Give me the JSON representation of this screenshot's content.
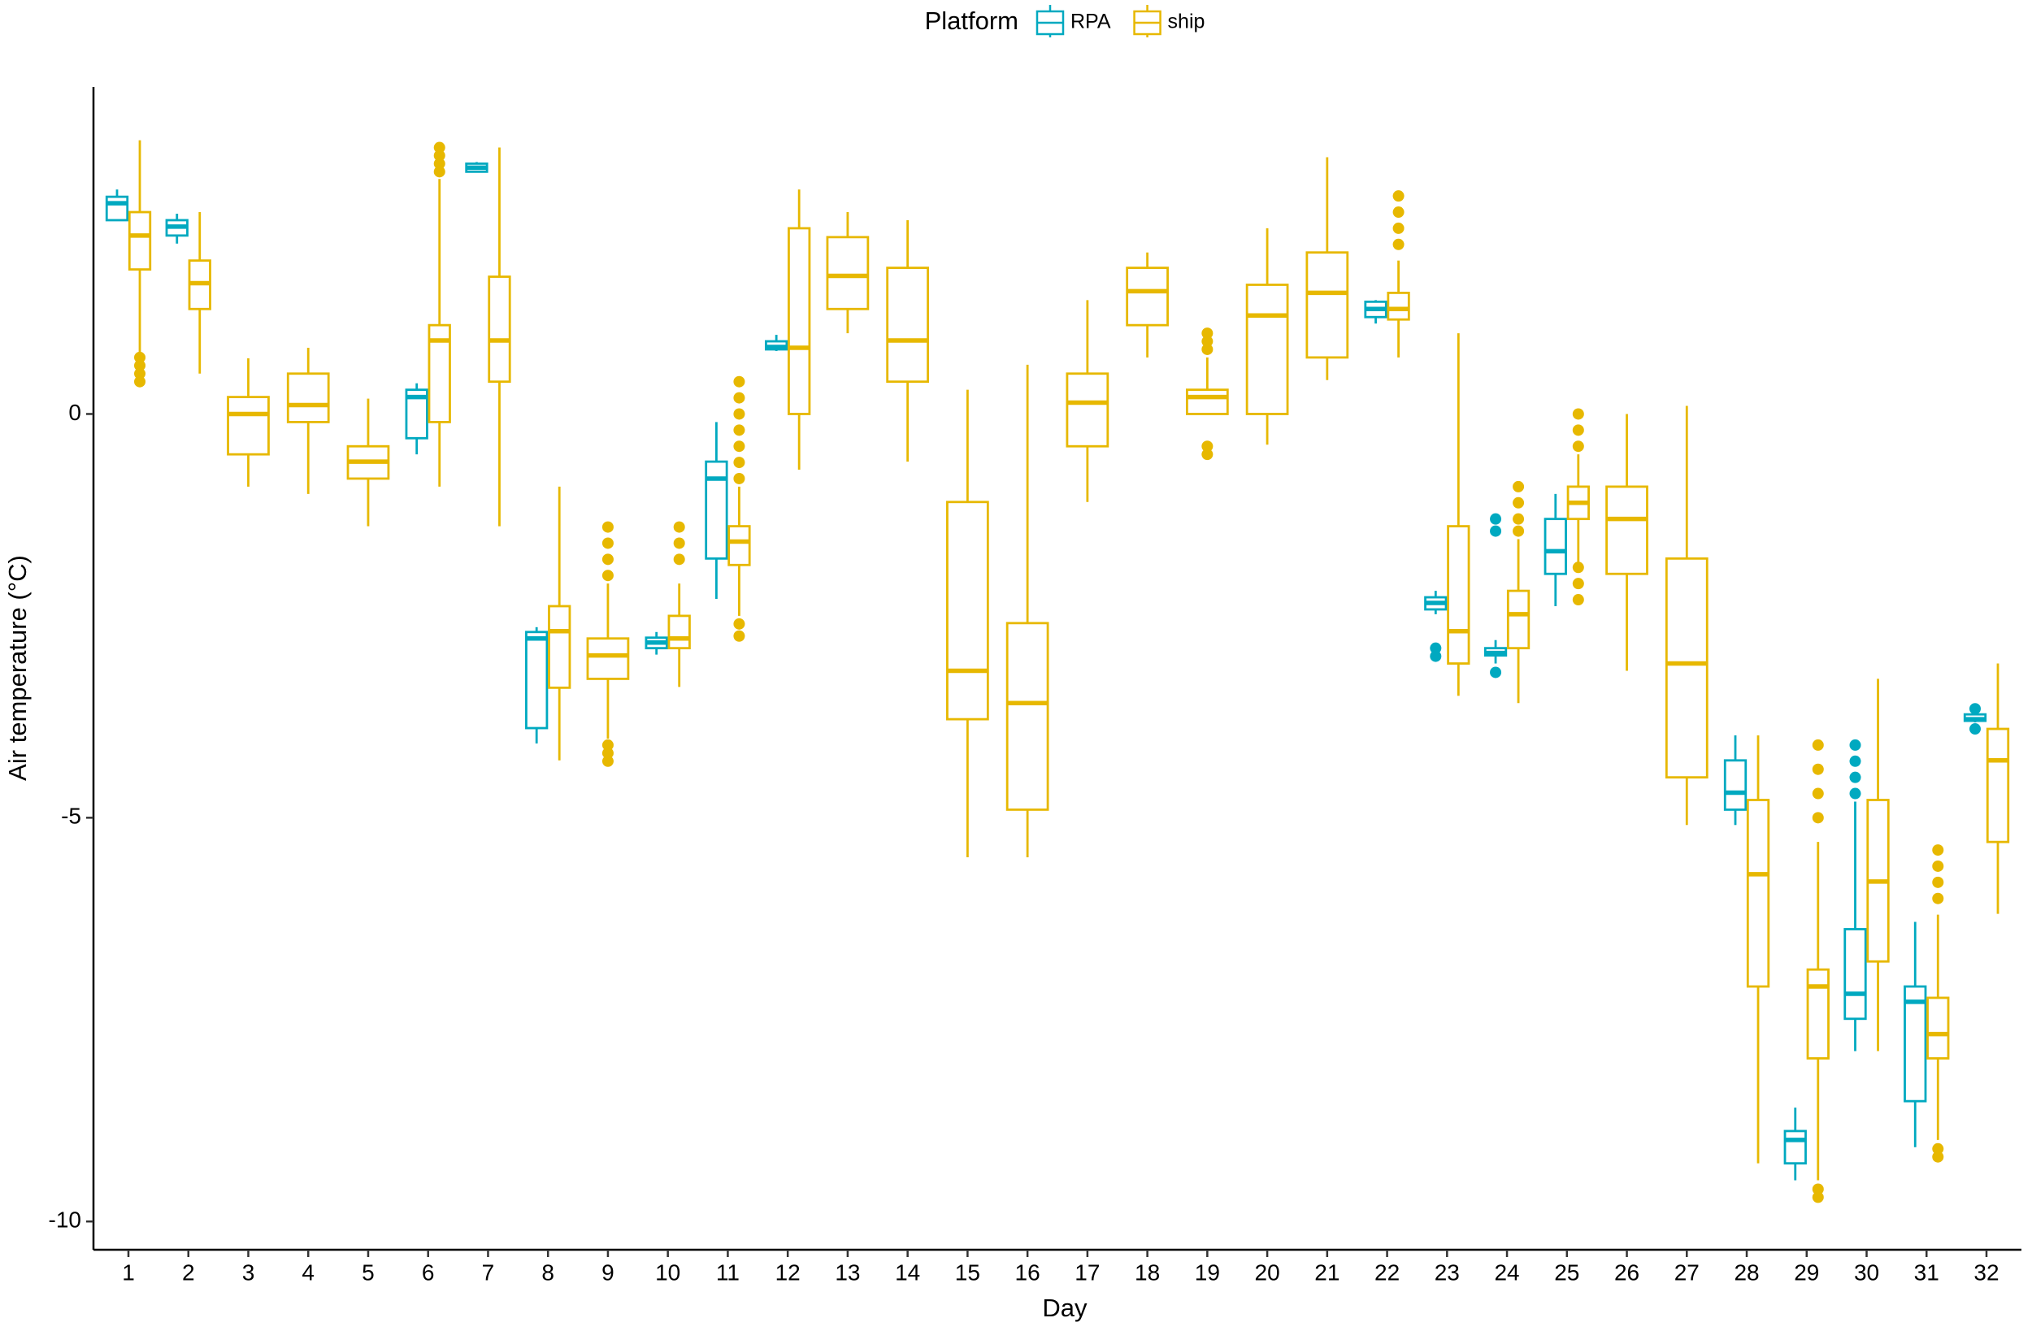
{
  "chart_data": {
    "type": "boxplot",
    "xlabel": "Day",
    "ylabel": "Air temperature (°C)",
    "legend_title": "Platform",
    "legend_position": "top",
    "categories": [
      "1",
      "2",
      "3",
      "4",
      "5",
      "6",
      "7",
      "8",
      "9",
      "10",
      "11",
      "12",
      "13",
      "14",
      "15",
      "16",
      "17",
      "18",
      "19",
      "20",
      "21",
      "22",
      "23",
      "24",
      "25",
      "26",
      "27",
      "28",
      "29",
      "30",
      "31",
      "32"
    ],
    "ylim": [
      -10.35,
      4.05
    ],
    "yticks": [
      -10,
      -5,
      0
    ],
    "series": [
      {
        "name": "RPA",
        "color": "#00a9c0",
        "boxes": [
          {
            "low": 2.4,
            "q1": 2.4,
            "median": 2.61,
            "q3": 2.69,
            "high": 2.78
          },
          {
            "low": 2.11,
            "q1": 2.21,
            "median": 2.32,
            "q3": 2.4,
            "high": 2.48
          },
          null,
          null,
          null,
          {
            "low": -0.5,
            "q1": -0.3,
            "median": 0.21,
            "q3": 0.3,
            "high": 0.38
          },
          {
            "low": 3.0,
            "q1": 3.0,
            "median": 3.05,
            "q3": 3.1,
            "high": 3.12
          },
          {
            "low": -4.08,
            "q1": -3.89,
            "median": -2.78,
            "q3": -2.7,
            "high": -2.64
          },
          null,
          {
            "low": -2.98,
            "q1": -2.9,
            "median": -2.83,
            "q3": -2.77,
            "high": -2.7
          },
          {
            "low": -2.29,
            "q1": -1.79,
            "median": -0.8,
            "q3": -0.59,
            "high": -0.1
          },
          {
            "low": 0.78,
            "q1": 0.8,
            "median": 0.83,
            "q3": 0.9,
            "high": 0.98
          },
          null,
          null,
          null,
          null,
          null,
          null,
          null,
          null,
          null,
          {
            "low": 1.12,
            "q1": 1.2,
            "median": 1.3,
            "q3": 1.39,
            "high": 1.41
          },
          {
            "low": -2.48,
            "q1": -2.42,
            "median": -2.34,
            "q3": -2.27,
            "high": -2.19,
            "outliers": [
              -2.9,
              -3.0
            ]
          },
          {
            "low": -3.09,
            "q1": -2.99,
            "median": -2.96,
            "q3": -2.9,
            "high": -2.8,
            "outliers": [
              -1.3,
              -1.45,
              -3.2
            ]
          },
          {
            "low": -2.38,
            "q1": -1.98,
            "median": -1.7,
            "q3": -1.3,
            "high": -0.99
          },
          null,
          null,
          {
            "low": -5.09,
            "q1": -4.9,
            "median": -4.69,
            "q3": -4.29,
            "high": -3.98
          },
          {
            "low": -9.49,
            "q1": -9.28,
            "median": -8.99,
            "q3": -8.88,
            "high": -8.59
          },
          {
            "low": -7.89,
            "q1": -7.49,
            "median": -7.18,
            "q3": -6.38,
            "high": -4.8,
            "outliers": [
              -4.1,
              -4.3,
              -4.5,
              -4.7
            ]
          },
          {
            "low": -9.08,
            "q1": -8.51,
            "median": -7.28,
            "q3": -7.09,
            "high": -6.29
          },
          {
            "low": -3.82,
            "q1": -3.8,
            "median": -3.78,
            "q3": -3.72,
            "high": -3.7,
            "outliers": [
              -3.65,
              -3.9
            ]
          }
        ]
      },
      {
        "name": "ship",
        "color": "#e7b800",
        "boxes": [
          {
            "low": 0.75,
            "q1": 1.79,
            "median": 2.21,
            "q3": 2.5,
            "high": 3.39,
            "outliers": [
              0.7,
              0.6,
              0.5,
              0.4
            ]
          },
          {
            "low": 0.5,
            "q1": 1.3,
            "median": 1.62,
            "q3": 1.9,
            "high": 2.5
          },
          {
            "low": -0.9,
            "q1": -0.5,
            "median": 0,
            "q3": 0.21,
            "high": 0.69
          },
          {
            "low": -0.99,
            "q1": -0.1,
            "median": 0.11,
            "q3": 0.5,
            "high": 0.82
          },
          {
            "low": -1.39,
            "q1": -0.8,
            "median": -0.59,
            "q3": -0.4,
            "high": 0.19
          },
          {
            "low": -0.9,
            "q1": -0.1,
            "median": 0.91,
            "q3": 1.1,
            "high": 2.91,
            "outliers": [
              3.3,
              3.2,
              3.1,
              3.0
            ]
          },
          {
            "low": -1.39,
            "q1": 0.4,
            "median": 0.91,
            "q3": 1.7,
            "high": 3.3
          },
          {
            "low": -4.29,
            "q1": -3.39,
            "median": -2.69,
            "q3": -2.38,
            "high": -0.9
          },
          {
            "low": -4.02,
            "q1": -3.28,
            "median": -2.99,
            "q3": -2.78,
            "high": -2.1,
            "outliers": [
              -1.4,
              -1.6,
              -1.8,
              -2.0,
              -4.1,
              -4.2,
              -4.3
            ]
          },
          {
            "low": -3.38,
            "q1": -2.9,
            "median": -2.78,
            "q3": -2.5,
            "high": -2.1,
            "outliers": [
              -1.4,
              -1.6,
              -1.8
            ]
          },
          {
            "low": -2.5,
            "q1": -1.87,
            "median": -1.58,
            "q3": -1.39,
            "high": -0.9,
            "outliers": [
              0.4,
              0.2,
              0,
              -0.2,
              -0.4,
              -0.6,
              -0.8,
              -2.6,
              -2.75
            ]
          },
          {
            "low": -0.69,
            "q1": 0,
            "median": 0.82,
            "q3": 2.3,
            "high": 2.78
          },
          {
            "low": 1.0,
            "q1": 1.3,
            "median": 1.71,
            "q3": 2.19,
            "high": 2.5
          },
          {
            "low": -0.59,
            "q1": 0.4,
            "median": 0.91,
            "q3": 1.81,
            "high": 2.4
          },
          {
            "low": -5.49,
            "q1": -3.78,
            "median": -3.18,
            "q3": -1.09,
            "high": 0.3
          },
          {
            "low": -5.49,
            "q1": -4.9,
            "median": -3.58,
            "q3": -2.59,
            "high": 0.61
          },
          {
            "low": -1.09,
            "q1": -0.4,
            "median": 0.14,
            "q3": 0.5,
            "high": 1.41
          },
          {
            "low": 0.7,
            "q1": 1.1,
            "median": 1.52,
            "q3": 1.81,
            "high": 2.0
          },
          {
            "low": 0,
            "q1": 0,
            "median": 0.21,
            "q3": 0.3,
            "high": 0.7,
            "outliers": [
              1.0,
              0.9,
              0.8,
              -0.4,
              -0.5
            ]
          },
          {
            "low": -0.38,
            "q1": 0,
            "median": 1.22,
            "q3": 1.6,
            "high": 2.3
          },
          {
            "low": 0.42,
            "q1": 0.7,
            "median": 1.5,
            "q3": 2.0,
            "high": 3.18
          },
          {
            "low": 0.7,
            "q1": 1.17,
            "median": 1.3,
            "q3": 1.5,
            "high": 1.9,
            "outliers": [
              2.7,
              2.5,
              2.3,
              2.1
            ]
          },
          {
            "low": -3.49,
            "q1": -3.09,
            "median": -2.69,
            "q3": -1.39,
            "high": 1.0
          },
          {
            "low": -3.58,
            "q1": -2.9,
            "median": -2.48,
            "q3": -2.19,
            "high": -1.55,
            "outliers": [
              -0.9,
              -1.1,
              -1.3,
              -1.45
            ]
          },
          {
            "low": -1.85,
            "q1": -1.3,
            "median": -1.1,
            "q3": -0.9,
            "high": -0.5,
            "outliers": [
              0,
              -0.2,
              -0.4,
              -1.9,
              -2.1,
              -2.3
            ]
          },
          {
            "low": -3.18,
            "q1": -1.98,
            "median": -1.3,
            "q3": -0.9,
            "high": 0
          },
          {
            "low": -5.09,
            "q1": -4.5,
            "median": -3.09,
            "q3": -1.79,
            "high": 0.1
          },
          {
            "low": -9.28,
            "q1": -7.09,
            "median": -5.7,
            "q3": -4.78,
            "high": -3.98
          },
          {
            "low": -9.49,
            "q1": -7.98,
            "median": -7.09,
            "q3": -6.88,
            "high": -5.3,
            "outliers": [
              -4.1,
              -4.4,
              -4.7,
              -5.0,
              -9.6,
              -9.7
            ]
          },
          {
            "low": -7.89,
            "q1": -6.78,
            "median": -5.79,
            "q3": -4.78,
            "high": -3.28
          },
          {
            "low": -8.99,
            "q1": -7.98,
            "median": -7.68,
            "q3": -7.23,
            "high": -6.2,
            "outliers": [
              -5.4,
              -5.6,
              -5.8,
              -6.0,
              -9.1,
              -9.2
            ]
          },
          {
            "low": -6.19,
            "q1": -5.3,
            "median": -4.29,
            "q3": -3.9,
            "high": -3.09
          }
        ]
      }
    ]
  }
}
